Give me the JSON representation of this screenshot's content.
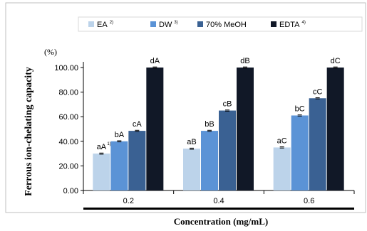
{
  "chart_data": {
    "type": "bar",
    "ylabel": "Ferrous ion-chelating capacity",
    "yunit": "(%)",
    "xlabel": "Concentration (mg/mL)",
    "categories": [
      "0.2",
      "0.4",
      "0.6"
    ],
    "ylim": [
      0,
      100
    ],
    "yticks": [
      "0.00",
      "20.00",
      "40.00",
      "60.00",
      "80.00",
      "100.00"
    ],
    "legend_position": "top",
    "grid": false,
    "series": [
      {
        "name": "EA",
        "sup": "2)",
        "color": "#bcd3ea",
        "values": [
          30,
          34,
          35
        ],
        "labels": [
          "aA",
          "aB",
          "aC"
        ],
        "label_sups": [
          "1)",
          "",
          ""
        ]
      },
      {
        "name": "DW",
        "sup": "3)",
        "color": "#5b93d6",
        "values": [
          40,
          48.5,
          61
        ],
        "labels": [
          "bA",
          "bB",
          "bC"
        ],
        "label_sups": [
          "",
          "",
          ""
        ]
      },
      {
        "name": "70% MeOH",
        "sup": "",
        "color": "#3a6193",
        "values": [
          48.5,
          65,
          75
        ],
        "labels": [
          "cA",
          "cB",
          "cC"
        ],
        "label_sups": [
          "",
          "",
          ""
        ]
      },
      {
        "name": "EDTA",
        "sup": "4)",
        "color": "#111827",
        "values": [
          100,
          100,
          100
        ],
        "labels": [
          "dA",
          "dB",
          "dC"
        ],
        "label_sups": [
          "",
          "",
          ""
        ]
      }
    ]
  }
}
